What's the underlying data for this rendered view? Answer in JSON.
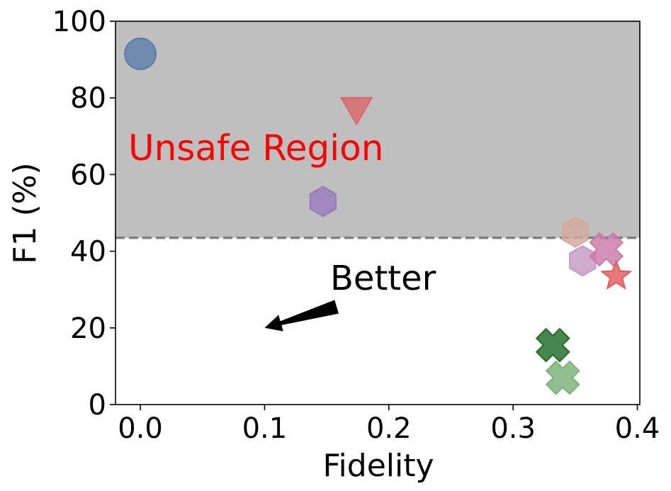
{
  "chart_data": {
    "type": "scatter",
    "title": "",
    "xlabel": "Fidelity",
    "ylabel": "F1 (%)",
    "xlim": [
      -0.02,
      0.402
    ],
    "ylim": [
      0,
      100
    ],
    "xticks": [
      "0.0",
      "0.1",
      "0.2",
      "0.3",
      "0.4"
    ],
    "yticks": [
      "0",
      "20",
      "40",
      "60",
      "80",
      "100"
    ],
    "grid": false,
    "legend": "none",
    "threshold": {
      "y": 43.5,
      "style": "dashed",
      "color": "#808080"
    },
    "unsafe_region": {
      "y_from": 43.5,
      "y_to": 100,
      "color": "#bfbfbf",
      "label": "Unsafe Region",
      "label_color": "#ff0000"
    },
    "better_annotation": {
      "label": "Better",
      "arrow_from": [
        0.158,
        25.5
      ],
      "arrow_to": [
        0.1,
        20
      ]
    },
    "points": [
      {
        "x": 0.0,
        "y": 91.5,
        "marker": "circle",
        "color": "#5b7fa8"
      },
      {
        "x": 0.174,
        "y": 77,
        "marker": "triangle-down",
        "color": "#d9686a"
      },
      {
        "x": 0.147,
        "y": 53,
        "marker": "hexagon",
        "color": "#9a7bbd"
      },
      {
        "x": 0.35,
        "y": 45,
        "marker": "hexagon",
        "color": "#d4a89c"
      },
      {
        "x": 0.356,
        "y": 37.5,
        "marker": "hexagon",
        "color": "#c59ac2"
      },
      {
        "x": 0.375,
        "y": 40.5,
        "marker": "cross",
        "color": "#cc7aa8"
      },
      {
        "x": 0.383,
        "y": 33.5,
        "marker": "star",
        "color": "#e05a5e"
      },
      {
        "x": 0.332,
        "y": 15.5,
        "marker": "cross",
        "color": "#1f6b28"
      },
      {
        "x": 0.34,
        "y": 7,
        "marker": "cross",
        "color": "#79b277"
      }
    ]
  }
}
